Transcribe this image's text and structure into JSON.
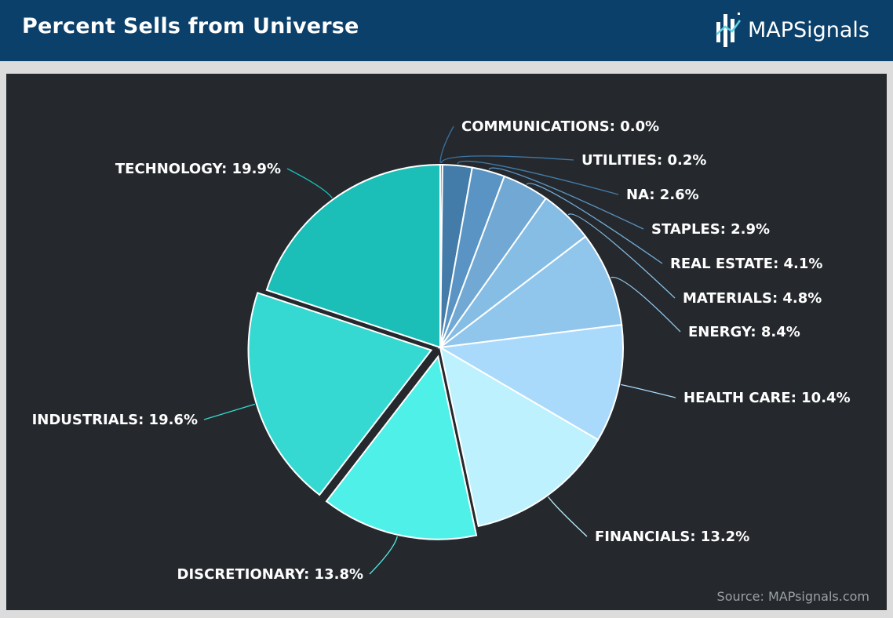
{
  "header": {
    "title": "Percent Sells from Universe",
    "logo_text": "MAPSignals",
    "logo_icon": "bar-chart-logo-icon"
  },
  "footer": {
    "source": "Source: MAPsignals.com"
  },
  "colors": {
    "header_bg": "#0b406b",
    "panel_bg": "#25292d",
    "leader_line": "#4aa8d8"
  },
  "chart_data": {
    "type": "pie",
    "title": "Percent Sells from Universe",
    "unit": "%",
    "start_angle_deg": 0,
    "direction": "clockwise",
    "exploded": [
      "INDUSTRIALS",
      "DISCRETIONARY"
    ],
    "slices": [
      {
        "label": "COMMUNICATIONS",
        "value": 0.0,
        "display": "COMMUNICATIONS: 0.0%",
        "color": "#3a6f9e"
      },
      {
        "label": "UTILITIES",
        "value": 0.2,
        "display": "UTILITIES: 0.2%",
        "color": "#3f77a8"
      },
      {
        "label": "NA",
        "value": 2.6,
        "display": "NA: 2.6%",
        "color": "#437ca8"
      },
      {
        "label": "STAPLES",
        "value": 2.9,
        "display": "STAPLES: 2.9%",
        "color": "#5a94c4"
      },
      {
        "label": "REAL ESTATE",
        "value": 4.1,
        "display": "REAL ESTATE: 4.1%",
        "color": "#71a9d4"
      },
      {
        "label": "MATERIALS",
        "value": 4.8,
        "display": "MATERIALS: 4.8%",
        "color": "#85bde5"
      },
      {
        "label": "ENERGY",
        "value": 8.4,
        "display": "ENERGY: 8.4%",
        "color": "#90c6ec"
      },
      {
        "label": "HEALTH CARE",
        "value": 10.4,
        "display": "HEALTH CARE: 10.4%",
        "color": "#a9dafb"
      },
      {
        "label": "FINANCIALS",
        "value": 13.2,
        "display": "FINANCIALS: 13.2%",
        "color": "#bdf1fd"
      },
      {
        "label": "DISCRETIONARY",
        "value": 13.8,
        "display": "DISCRETIONARY: 13.8%",
        "color": "#4ff0e8"
      },
      {
        "label": "INDUSTRIALS",
        "value": 19.6,
        "display": "INDUSTRIALS: 19.6%",
        "color": "#35d9d1"
      },
      {
        "label": "TECHNOLOGY",
        "value": 19.9,
        "display": "TECHNOLOGY: 19.9%",
        "color": "#1bbfb7"
      }
    ]
  }
}
